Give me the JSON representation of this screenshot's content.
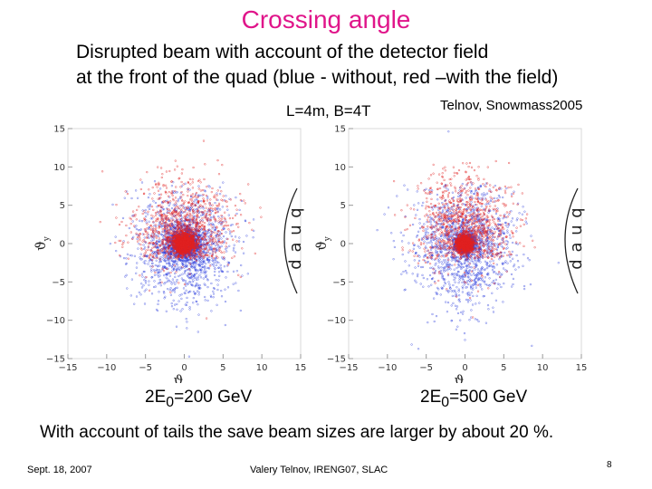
{
  "slide": {
    "title": "Crossing angle",
    "subtitle_line1": "Disrupted beam with account of the detector field",
    "subtitle_line2": "at the front of the quad (blue - without, red –with the field)",
    "params": "L=4m, B=4T",
    "credit": "Telnov, Snowmass2005",
    "conclusion": "With account of tails the save beam sizes are larger by about 20 %.",
    "footer_date": "Sept. 18, 2007",
    "footer_author": "Valery Telnov, IRENG07, SLAC",
    "page_number": "8",
    "energy_labels": [
      {
        "prefix": "2E",
        "sub": "0",
        "suffix": "=200 GeV"
      },
      {
        "prefix": "2E",
        "sub": "0",
        "suffix": "=500 GeV"
      }
    ]
  },
  "chart_data": [
    {
      "type": "scatter",
      "xlabel": "ϑx",
      "ylabel": "ϑy",
      "xlim": [
        -15,
        15
      ],
      "ylim": [
        -15,
        15
      ],
      "xticks": [
        -15,
        -10,
        -5,
        0,
        5,
        10,
        15
      ],
      "yticks": [
        -15,
        -10,
        -5,
        0,
        5,
        10,
        15
      ],
      "xtick_labels": [
        "−15",
        "−10",
        "−5",
        "0",
        "5",
        "10",
        "15"
      ],
      "ytick_labels": [
        "−15",
        "−10",
        "−5",
        "0",
        "5",
        "10",
        "15"
      ],
      "annotation": "quad",
      "series": [
        {
          "color": "#3344dd",
          "center": [
            0,
            0
          ],
          "core_spread": 1.0,
          "halo_spread": [
            3.2,
            3.6
          ],
          "y_shift": -1.5
        },
        {
          "color": "#e02020",
          "center": [
            0,
            0
          ],
          "core_spread": 0.7,
          "halo_spread": [
            3.0,
            3.4
          ],
          "y_shift": 3.5
        }
      ]
    },
    {
      "type": "scatter",
      "xlabel": "ϑx",
      "ylabel": "ϑy",
      "xlim": [
        -15,
        15
      ],
      "ylim": [
        -15,
        15
      ],
      "xticks": [
        -15,
        -10,
        -5,
        0,
        5,
        10,
        15
      ],
      "yticks": [
        -15,
        -10,
        -5,
        0,
        5,
        10,
        15
      ],
      "xtick_labels": [
        "−15",
        "−10",
        "−5",
        "0",
        "5",
        "10",
        "15"
      ],
      "ytick_labels": [
        "−15",
        "−10",
        "−5",
        "0",
        "5",
        "10",
        "15"
      ],
      "annotation": "quad",
      "series": [
        {
          "color": "#3344dd",
          "center": [
            0,
            0
          ],
          "core_spread": 0.6,
          "halo_spread": [
            3.2,
            3.8
          ],
          "y_shift": -0.5
        },
        {
          "color": "#e02020",
          "center": [
            0,
            0
          ],
          "core_spread": 0.5,
          "halo_spread": [
            3.0,
            3.6
          ],
          "y_shift": 5.0
        }
      ]
    }
  ]
}
